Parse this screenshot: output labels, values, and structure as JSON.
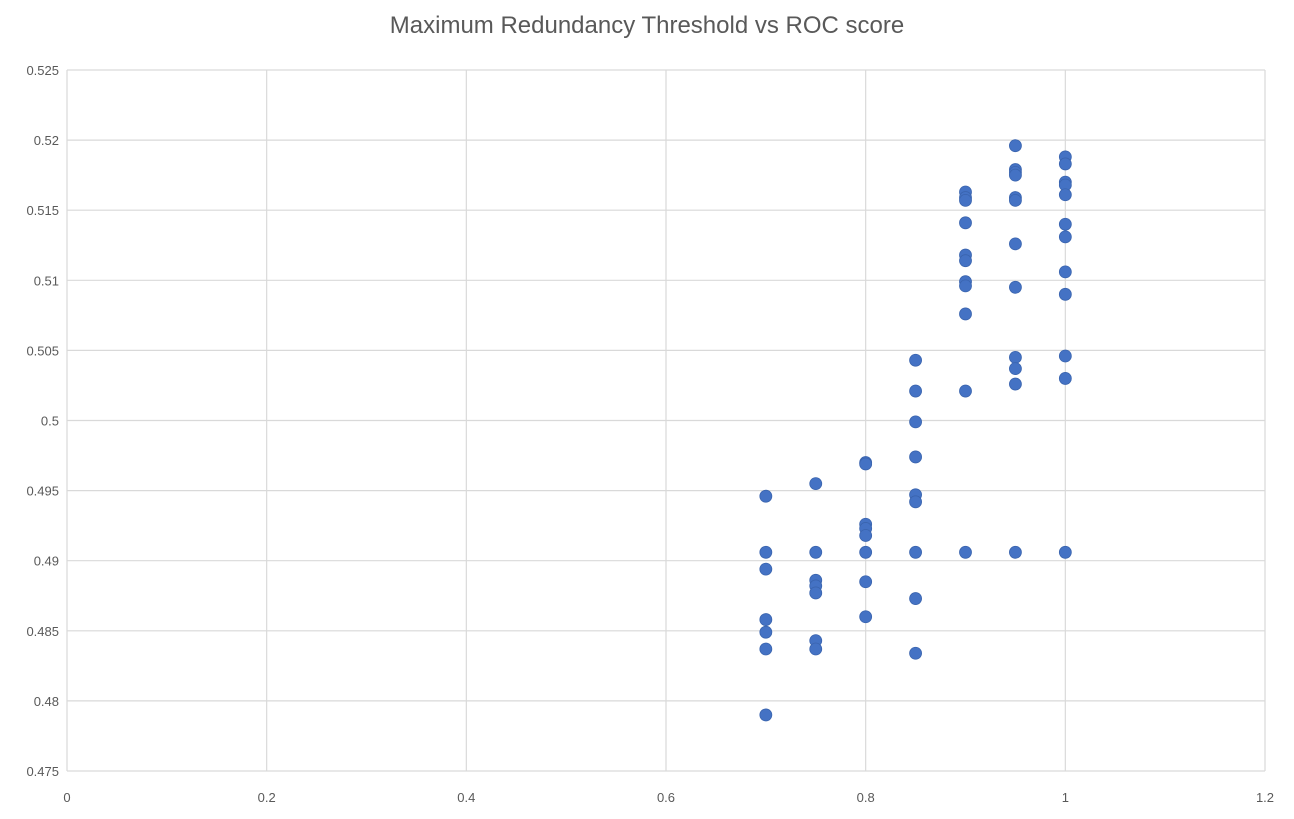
{
  "chart_data": {
    "type": "scatter",
    "title": "Maximum Redundancy Threshold vs ROC score",
    "xlabel": "",
    "ylabel": "",
    "xlim": [
      0,
      1.2
    ],
    "ylim": [
      0.475,
      0.525
    ],
    "xticks": [
      "0",
      "0.2",
      "0.4",
      "0.6",
      "0.8",
      "1",
      "1.2"
    ],
    "yticks": [
      "0.475",
      "0.48",
      "0.485",
      "0.49",
      "0.495",
      "0.5",
      "0.505",
      "0.51",
      "0.515",
      "0.52",
      "0.525"
    ],
    "grid": true,
    "marker_color": "#4472C4",
    "series": [
      {
        "points": [
          [
            0.7,
            0.4946
          ],
          [
            0.7,
            0.4906
          ],
          [
            0.7,
            0.4894
          ],
          [
            0.7,
            0.4858
          ],
          [
            0.7,
            0.4849
          ],
          [
            0.7,
            0.4837
          ],
          [
            0.7,
            0.479
          ],
          [
            0.75,
            0.4955
          ],
          [
            0.75,
            0.4906
          ],
          [
            0.75,
            0.4886
          ],
          [
            0.75,
            0.4882
          ],
          [
            0.75,
            0.4877
          ],
          [
            0.75,
            0.4843
          ],
          [
            0.75,
            0.4837
          ],
          [
            0.8,
            0.497
          ],
          [
            0.8,
            0.4969
          ],
          [
            0.8,
            0.4926
          ],
          [
            0.8,
            0.4923
          ],
          [
            0.8,
            0.4918
          ],
          [
            0.8,
            0.4906
          ],
          [
            0.8,
            0.4885
          ],
          [
            0.8,
            0.486
          ],
          [
            0.85,
            0.5043
          ],
          [
            0.85,
            0.5021
          ],
          [
            0.85,
            0.4999
          ],
          [
            0.85,
            0.4974
          ],
          [
            0.85,
            0.4947
          ],
          [
            0.85,
            0.4942
          ],
          [
            0.85,
            0.4906
          ],
          [
            0.85,
            0.4873
          ],
          [
            0.85,
            0.4834
          ],
          [
            0.9,
            0.5163
          ],
          [
            0.9,
            0.5159
          ],
          [
            0.9,
            0.5157
          ],
          [
            0.9,
            0.5141
          ],
          [
            0.9,
            0.5118
          ],
          [
            0.9,
            0.5114
          ],
          [
            0.9,
            0.5099
          ],
          [
            0.9,
            0.5096
          ],
          [
            0.9,
            0.5076
          ],
          [
            0.9,
            0.5021
          ],
          [
            0.9,
            0.4906
          ],
          [
            0.95,
            0.5196
          ],
          [
            0.95,
            0.5179
          ],
          [
            0.95,
            0.5177
          ],
          [
            0.95,
            0.5175
          ],
          [
            0.95,
            0.5159
          ],
          [
            0.95,
            0.5157
          ],
          [
            0.95,
            0.5126
          ],
          [
            0.95,
            0.5095
          ],
          [
            0.95,
            0.5045
          ],
          [
            0.95,
            0.5037
          ],
          [
            0.95,
            0.5026
          ],
          [
            0.95,
            0.4906
          ],
          [
            1.0,
            0.5188
          ],
          [
            1.0,
            0.5183
          ],
          [
            1.0,
            0.517
          ],
          [
            1.0,
            0.5168
          ],
          [
            1.0,
            0.5161
          ],
          [
            1.0,
            0.514
          ],
          [
            1.0,
            0.5131
          ],
          [
            1.0,
            0.5106
          ],
          [
            1.0,
            0.509
          ],
          [
            1.0,
            0.5046
          ],
          [
            1.0,
            0.503
          ],
          [
            1.0,
            0.4906
          ]
        ]
      }
    ]
  }
}
